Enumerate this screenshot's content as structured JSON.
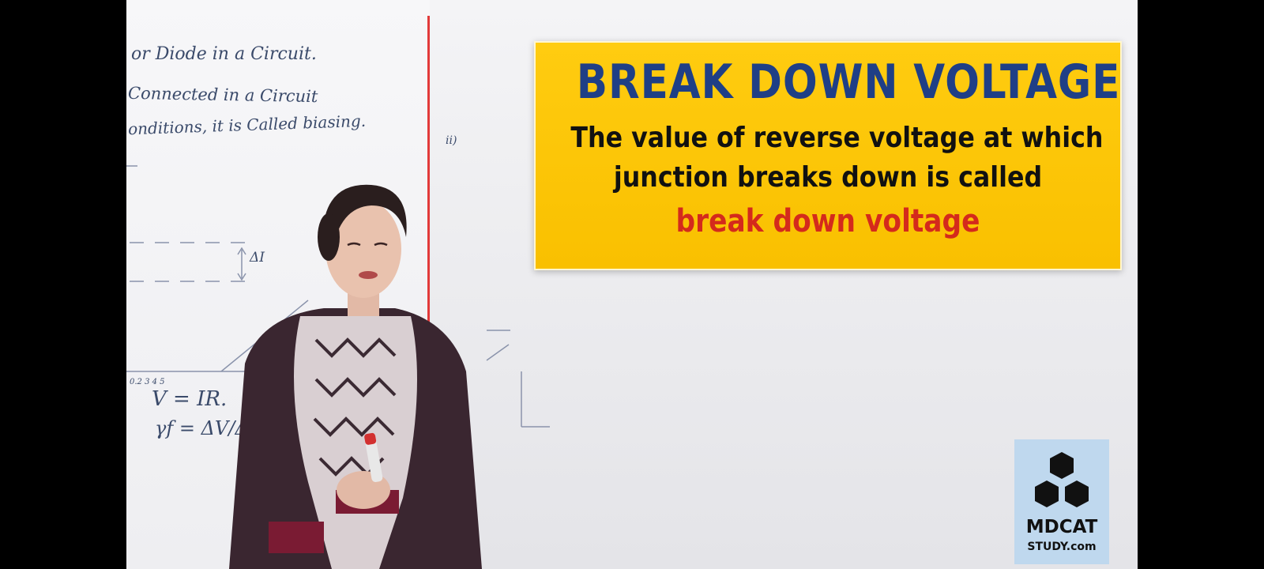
{
  "board_notes": {
    "line1": "or Diode in a Circuit.",
    "line2": "Connected in a Circuit",
    "line3": "onditions, it is Called biasing.",
    "mark_ii": "ii)",
    "mark_delta_i": "ΔI",
    "axis_ticks": "0.2 3 4 5",
    "formula1": "V = IR.",
    "formula2": "γf = ΔV/Δ"
  },
  "slide": {
    "title": "BREAK DOWN VOLTAGE",
    "line1": "The value of reverse voltage at which",
    "line2": "junction breaks down is called",
    "highlight": "break down voltage"
  },
  "logo": {
    "line1": "MDCAT",
    "line2": "STUDY.com"
  },
  "colors": {
    "card_yellow": "#fcc40a",
    "title_blue": "#1f3f86",
    "highlight_red": "#d42a1c",
    "logo_bg": "#bfd8ee"
  }
}
